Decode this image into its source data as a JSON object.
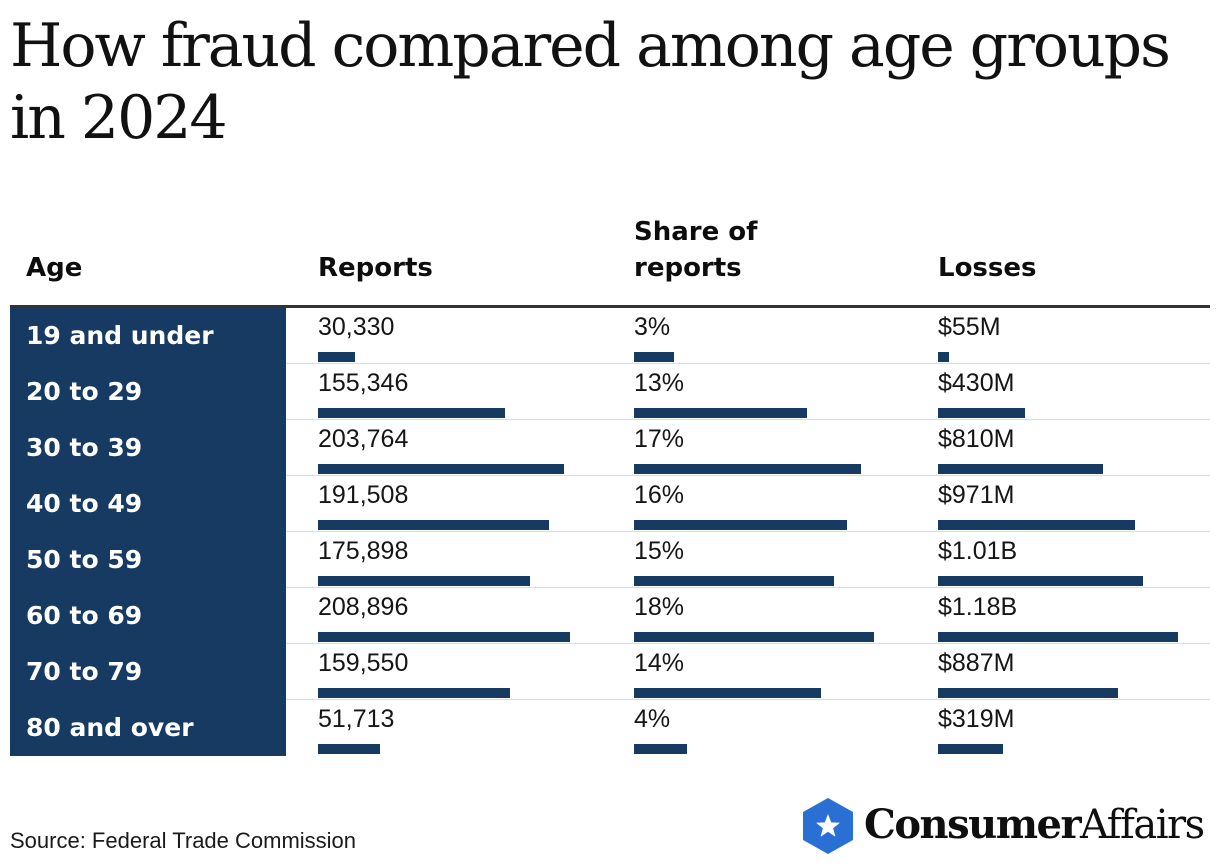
{
  "title": "How fraud compared among age groups in 2024",
  "source": "Source: Federal Trade Commission",
  "brand": {
    "name_bold": "Consumer",
    "name_light": "Affairs",
    "logo_color": "#2a6fd4"
  },
  "colors": {
    "band": "#173a63",
    "bar": "#173a63"
  },
  "columns": {
    "age": "Age",
    "reports": "Reports",
    "share": "Share of reports",
    "losses": "Losses"
  },
  "chart_data": {
    "type": "table",
    "title": "How fraud compared among age groups in 2024",
    "columns": [
      "Age",
      "Reports",
      "Share of reports",
      "Losses"
    ],
    "rows": [
      {
        "age": "19 and under",
        "reports": 30330,
        "reports_label": "30,330",
        "share": 3,
        "share_label": "3%",
        "losses": 55,
        "losses_label": "$55M"
      },
      {
        "age": "20 to 29",
        "reports": 155346,
        "reports_label": "155,346",
        "share": 13,
        "share_label": "13%",
        "losses": 430,
        "losses_label": "$430M"
      },
      {
        "age": "30 to 39",
        "reports": 203764,
        "reports_label": "203,764",
        "share": 17,
        "share_label": "17%",
        "losses": 810,
        "losses_label": "$810M"
      },
      {
        "age": "40 to 49",
        "reports": 191508,
        "reports_label": "191,508",
        "share": 16,
        "share_label": "16%",
        "losses": 971,
        "losses_label": "$971M"
      },
      {
        "age": "50 to 59",
        "reports": 175898,
        "reports_label": "175,898",
        "share": 15,
        "share_label": "15%",
        "losses": 1010,
        "losses_label": "$1.01B"
      },
      {
        "age": "60 to 69",
        "reports": 208896,
        "reports_label": "208,896",
        "share": 18,
        "share_label": "18%",
        "losses": 1180,
        "losses_label": "$1.18B"
      },
      {
        "age": "70 to 79",
        "reports": 159550,
        "reports_label": "159,550",
        "share": 14,
        "share_label": "14%",
        "losses": 887,
        "losses_label": "$887M"
      },
      {
        "age": "80 and over",
        "reports": 51713,
        "reports_label": "51,713",
        "share": 4,
        "share_label": "4%",
        "losses": 319,
        "losses_label": "$319M"
      }
    ],
    "losses_unit": "millions of dollars"
  }
}
